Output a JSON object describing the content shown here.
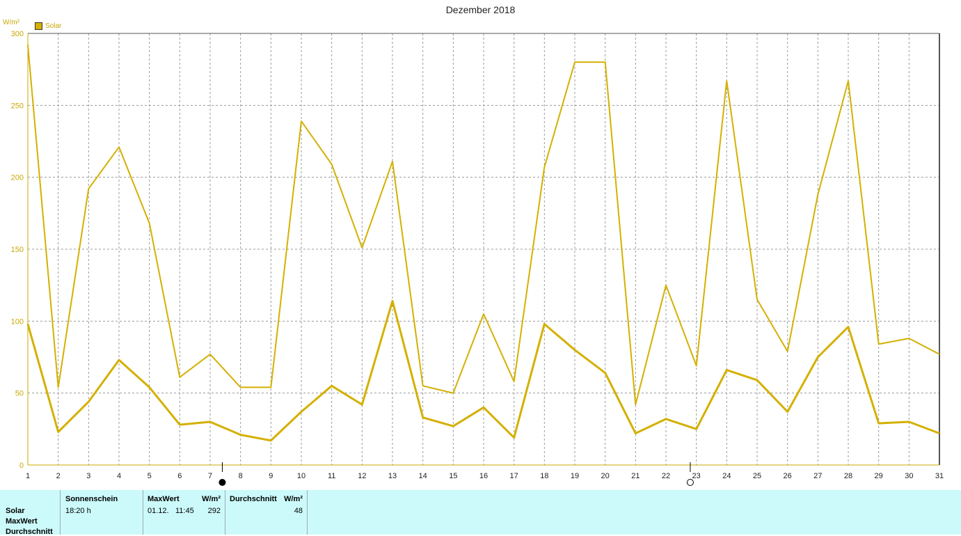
{
  "title": "Dezember 2018",
  "unit": "W/m²",
  "legend": {
    "label": "Solar"
  },
  "colors": {
    "series": "#d4b000",
    "grid": "#999999",
    "axis": "#c8a800",
    "panel": "#ccfafa"
  },
  "chart_data": {
    "type": "line",
    "x": [
      1,
      2,
      3,
      4,
      5,
      6,
      7,
      8,
      9,
      10,
      11,
      12,
      13,
      14,
      15,
      16,
      17,
      18,
      19,
      20,
      21,
      22,
      23,
      24,
      25,
      26,
      27,
      28,
      29,
      30,
      31
    ],
    "ylim": [
      0,
      300
    ],
    "yticks": [
      0,
      50,
      100,
      150,
      200,
      250,
      300
    ],
    "series": [
      {
        "name": "MaxWert",
        "values": [
          292,
          54,
          192,
          221,
          168,
          61,
          77,
          54,
          54,
          239,
          209,
          151,
          211,
          55,
          50,
          105,
          58,
          207,
          280,
          280,
          42,
          125,
          69,
          267,
          115,
          79,
          188,
          267,
          84,
          88,
          77
        ]
      },
      {
        "name": "Durchschnitt",
        "values": [
          98,
          23,
          44,
          73,
          54,
          28,
          30,
          21,
          17,
          37,
          55,
          42,
          114,
          33,
          27,
          40,
          19,
          98,
          80,
          64,
          22,
          32,
          25,
          66,
          59,
          37,
          75,
          96,
          29,
          30,
          22
        ]
      }
    ],
    "markers": [
      {
        "type": "new-moon",
        "x": 7.4
      },
      {
        "type": "full-moon",
        "x": 22.8
      }
    ]
  },
  "panel": {
    "rows": [
      "Solar",
      "MaxWert",
      "Durchschnitt"
    ],
    "sonnenschein": {
      "header": "Sonnenschein",
      "value": "18:20 h"
    },
    "maxwert": {
      "header": "MaxWert",
      "unit": "W/m²",
      "date": "01.12.",
      "time": "11:45",
      "value": "292"
    },
    "durchschnitt": {
      "header": "Durchschnitt",
      "unit": "W/m²",
      "value": "48"
    }
  }
}
